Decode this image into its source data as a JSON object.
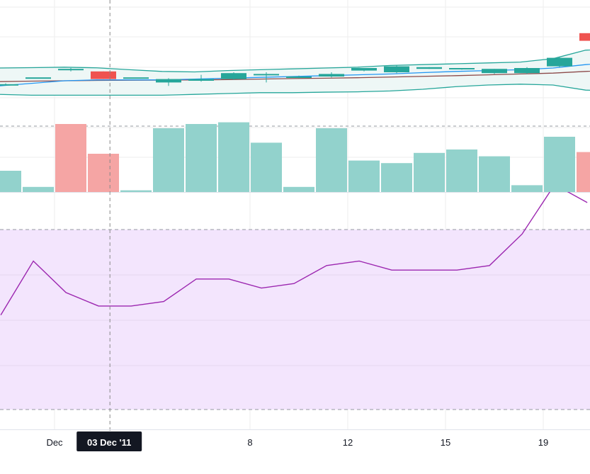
{
  "chart_data": {
    "type": "candlestick",
    "colors": {
      "up": "#26a69a",
      "down": "#ef5350",
      "volume_up": "#92d2cc",
      "volume_down": "#f5a5a4",
      "bollinger": "#26a69a",
      "bollinger_fill": "#eef7f6",
      "ma_fast": "#2196f3",
      "ma_slow": "#8d4a4a",
      "rsi_line": "#9c27b0",
      "rsi_fill": "#f3e5fd",
      "grid": "#eeeeee",
      "crosshair": "#888888",
      "label_bg": "#131722"
    },
    "x_tick_labels": [
      {
        "index": 1.5,
        "text": "Dec"
      },
      {
        "index": 7.5,
        "text": "8"
      },
      {
        "index": 10.5,
        "text": "12"
      },
      {
        "index": 13.5,
        "text": "15"
      },
      {
        "index": 16.5,
        "text": "19"
      }
    ],
    "crosshair": {
      "index": 3.2,
      "label": "03 Dec '11"
    },
    "price_pane": {
      "y_range": [
        0,
        100
      ],
      "candles": [
        {
          "o": 63,
          "h": 63.5,
          "l": 62.5,
          "c": 63
        },
        {
          "o": 67,
          "h": 67,
          "l": 67,
          "c": 67
        },
        {
          "o": 72,
          "h": 72.5,
          "l": 70.5,
          "c": 72
        },
        {
          "o": 70.5,
          "h": 70.5,
          "l": 66,
          "c": 66
        },
        {
          "o": 67,
          "h": 67,
          "l": 67,
          "c": 67
        },
        {
          "o": 64,
          "h": 66.5,
          "l": 62,
          "c": 66
        },
        {
          "o": 65,
          "h": 68.5,
          "l": 64.5,
          "c": 66
        },
        {
          "o": 66,
          "h": 70,
          "l": 65.5,
          "c": 69.5
        },
        {
          "o": 69,
          "h": 70,
          "l": 64,
          "c": 69
        },
        {
          "o": 67.5,
          "h": 68,
          "l": 66.5,
          "c": 67.5
        },
        {
          "o": 67.5,
          "h": 70,
          "l": 67,
          "c": 69
        },
        {
          "o": 71,
          "h": 72.5,
          "l": 70.5,
          "c": 72.5
        },
        {
          "o": 70,
          "h": 74,
          "l": 69.5,
          "c": 73.5
        },
        {
          "o": 72,
          "h": 73,
          "l": 72,
          "c": 73
        },
        {
          "o": 72,
          "h": 72.5,
          "l": 71.5,
          "c": 72.5
        },
        {
          "o": 69.5,
          "h": 72,
          "l": 69,
          "c": 72
        },
        {
          "o": 69.5,
          "h": 73,
          "l": 69,
          "c": 72.5
        },
        {
          "o": 73.5,
          "h": 79,
          "l": 73,
          "c": 78.5
        },
        {
          "o": 93,
          "h": 93,
          "l": 88.5,
          "c": 88.5
        }
      ],
      "bollinger_upper": [
        72.5,
        72.7,
        73,
        72.6,
        71.5,
        70.5,
        70.2,
        71,
        71.5,
        72,
        72.5,
        73,
        74,
        74.5,
        75,
        75.5,
        76,
        78,
        83,
        84
      ],
      "bollinger_lower": [
        57,
        56.5,
        56.5,
        56.5,
        56.5,
        56.5,
        57,
        57.5,
        58,
        58,
        58.3,
        58.5,
        59,
        60,
        61.5,
        62.5,
        63,
        62.5,
        59.5,
        59
      ],
      "ma_fast": [
        62,
        63.5,
        65,
        65.5,
        65.5,
        65.5,
        66,
        66.5,
        67,
        67.5,
        68,
        68.5,
        69,
        69.8,
        70.5,
        71,
        71.5,
        72.5,
        74.5,
        76
      ],
      "ma_slow": [
        64.5,
        64.8,
        65,
        65.2,
        65.3,
        65.4,
        65.5,
        65.7,
        66,
        66.3,
        66.5,
        66.8,
        67.2,
        67.6,
        68,
        68.5,
        69,
        69.5,
        70.5,
        71.5
      ]
    },
    "volume_pane": {
      "values": [
        25,
        6,
        80,
        45,
        2,
        75,
        80,
        82,
        58,
        6,
        75,
        37,
        34,
        46,
        50,
        42,
        8,
        65,
        47
      ],
      "direction": [
        "up",
        "up",
        "down",
        "down",
        "up",
        "up",
        "up",
        "up",
        "up",
        "up",
        "up",
        "up",
        "up",
        "up",
        "up",
        "up",
        "up",
        "up",
        "down"
      ]
    },
    "rsi_pane": {
      "y_range": [
        0,
        100
      ],
      "upper_band": 70,
      "lower_band": 30,
      "values": [
        51,
        63,
        56,
        53,
        53,
        54,
        59,
        59,
        57,
        58,
        62,
        63,
        61,
        61,
        61,
        62,
        69,
        80,
        76
      ]
    }
  }
}
